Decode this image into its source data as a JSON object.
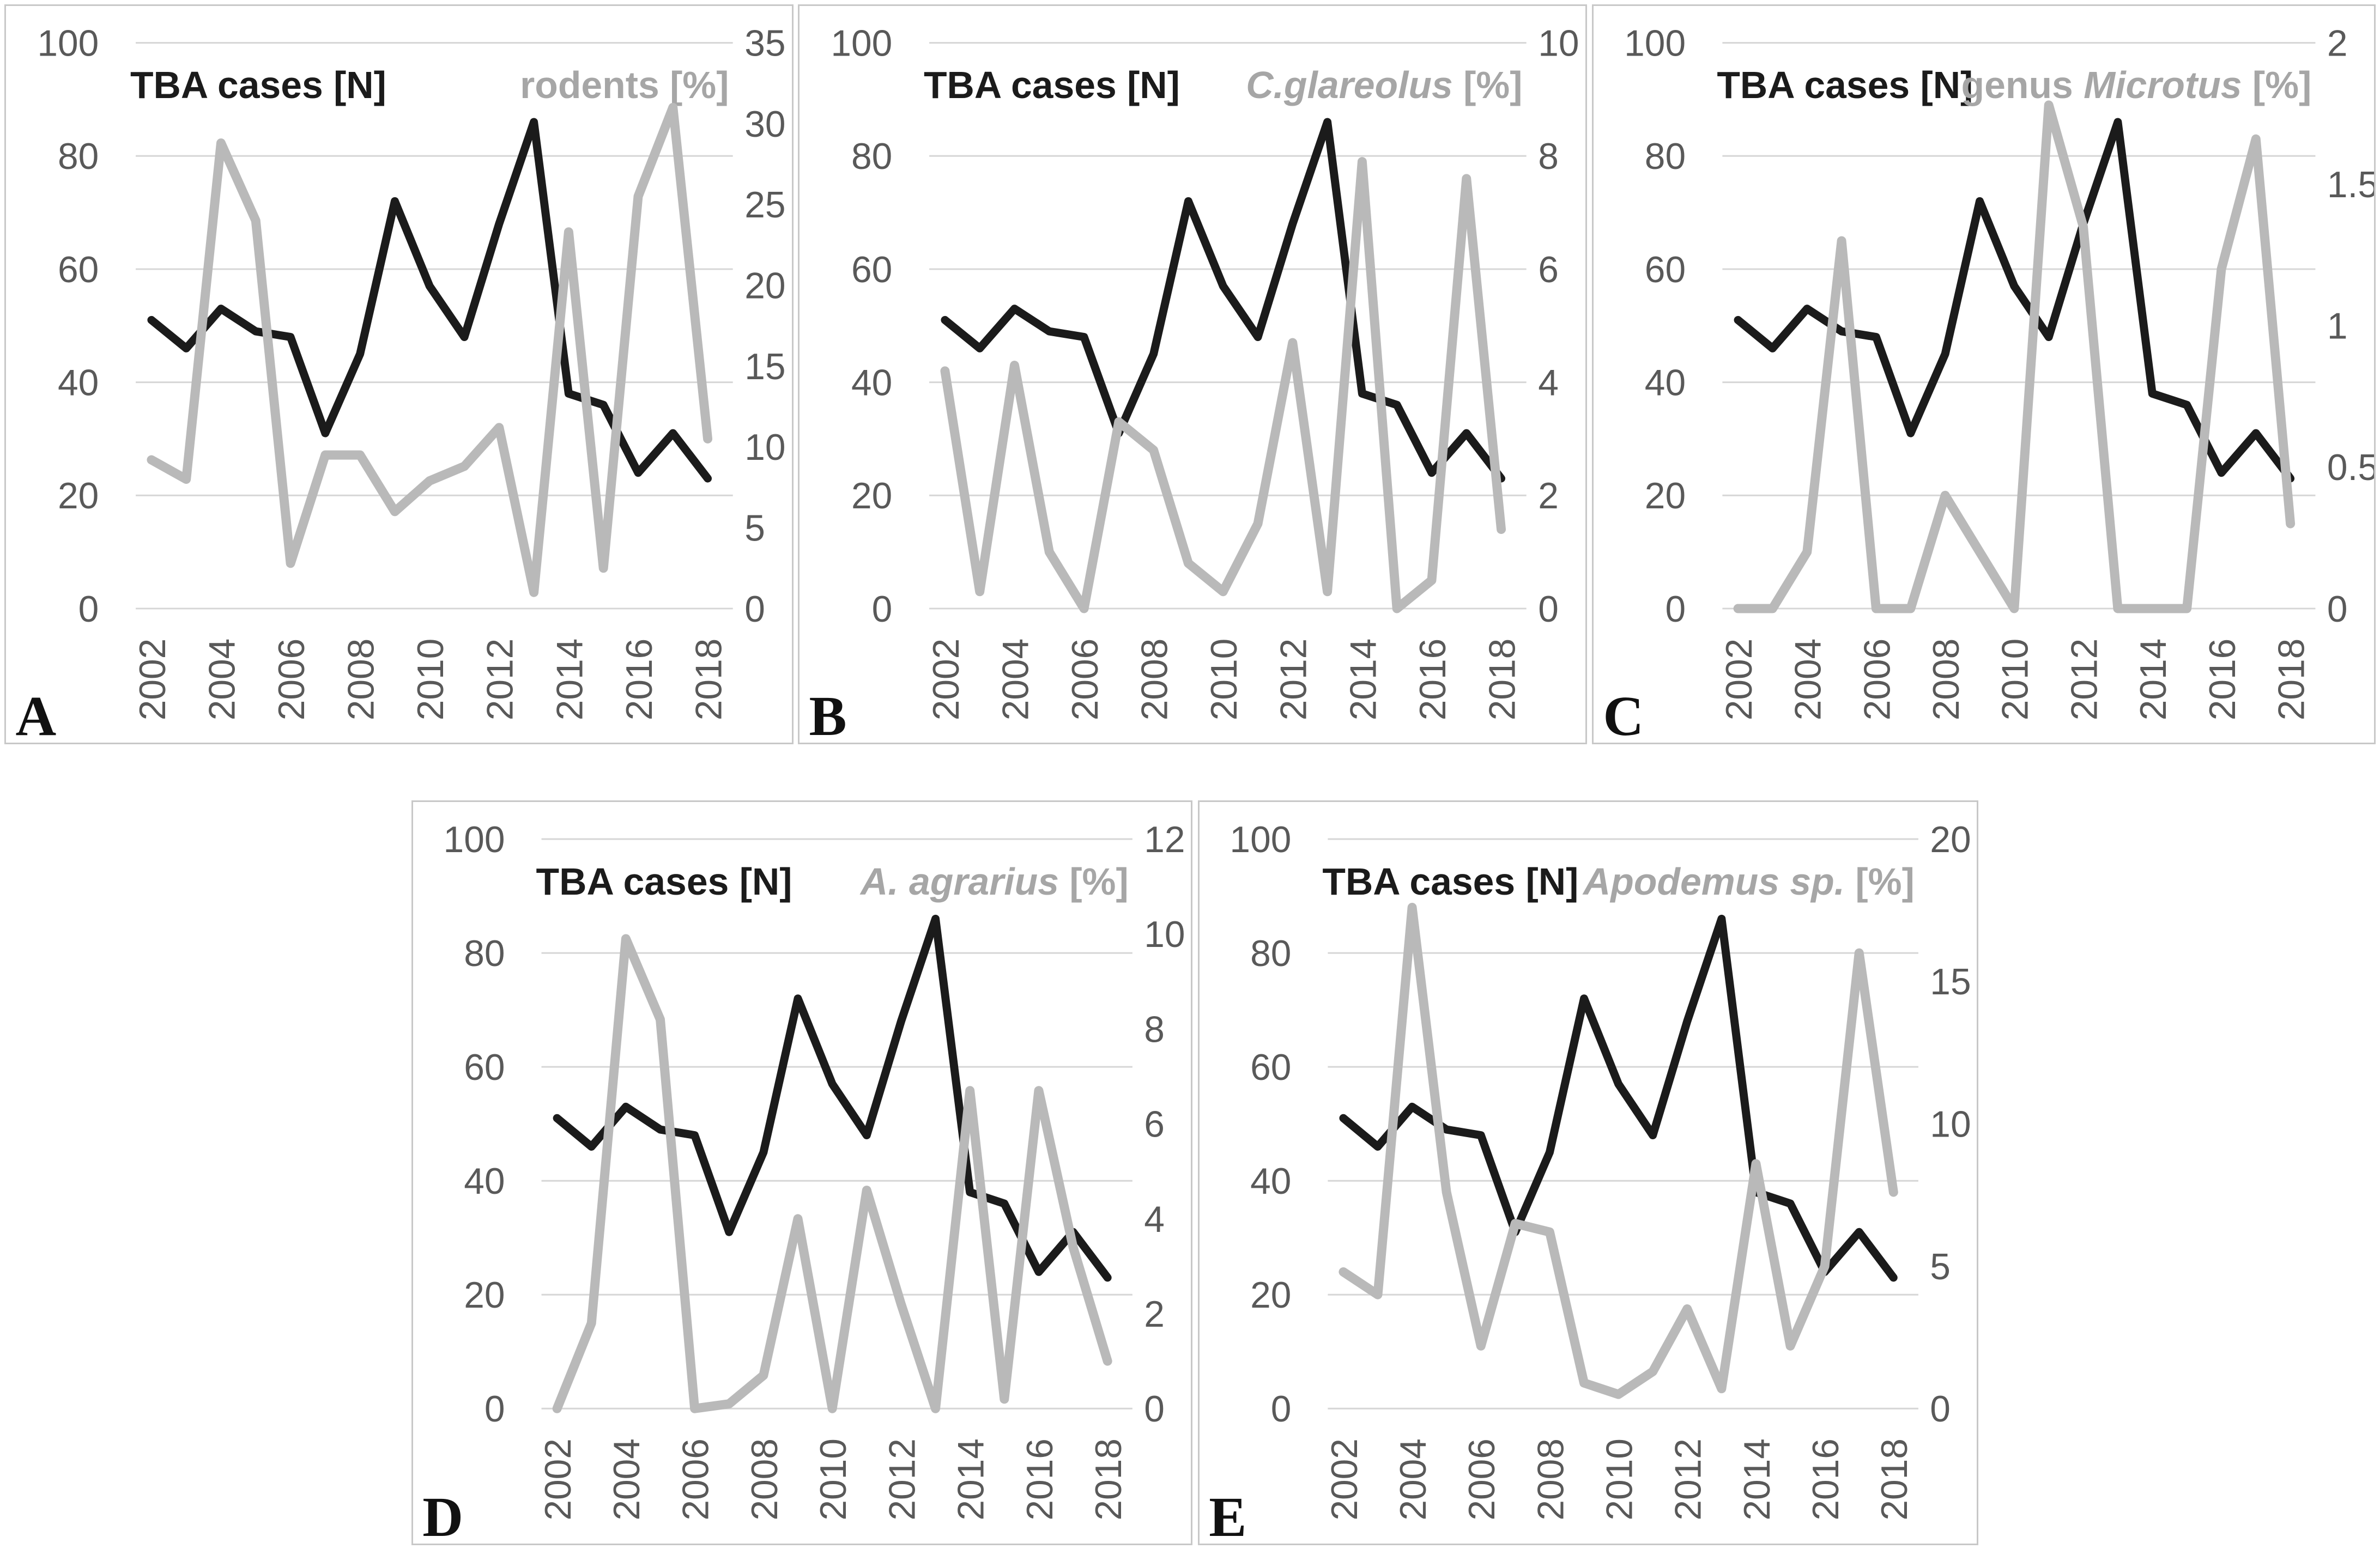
{
  "figure": {
    "description": "Five dual-axis line charts comparing tick-borne encephalitis (TBA) cases with rodent percentages, 2002-2018",
    "panel_letters": [
      "A",
      "B",
      "C",
      "D",
      "E"
    ]
  },
  "colors": {
    "cases_line": "#1b1b1b",
    "species_line": "#b9b9b9",
    "gridline": "#d6d6d6",
    "panel_border": "#c8c8c8",
    "axis_text": "#595959",
    "title_left_color": "#1b1b1b",
    "title_right_color": "#a6a6a6",
    "panel_letter_color": "#111111",
    "background": "#ffffff"
  },
  "chart_data": [
    {
      "panel_label": "A",
      "type": "line",
      "title_left": "TBA cases [N]",
      "title_right": {
        "prefix": "rodents",
        "italic": "",
        "suffix": " [%]"
      },
      "x_years": [
        2002,
        2003,
        2004,
        2005,
        2006,
        2007,
        2008,
        2009,
        2010,
        2011,
        2012,
        2013,
        2014,
        2015,
        2016,
        2017,
        2018
      ],
      "x_tick_labels": [
        "2002",
        "2004",
        "2006",
        "2008",
        "2010",
        "2012",
        "2014",
        "2016",
        "2018"
      ],
      "grid": true,
      "left_axis": {
        "min": 0,
        "max": 100,
        "ticks": [
          0,
          20,
          40,
          60,
          80,
          100
        ],
        "tick_labels": [
          "0",
          "20",
          "40",
          "60",
          "80",
          "100"
        ]
      },
      "right_axis": {
        "min": 0,
        "max": 35,
        "ticks": [
          0,
          5,
          10,
          15,
          20,
          25,
          30,
          35
        ],
        "tick_labels": [
          "0",
          "5",
          "10",
          "15",
          "20",
          "25",
          "30",
          "35"
        ]
      },
      "series": [
        {
          "name": "TBA cases [N]",
          "axis": "left",
          "color_role": "cases_line",
          "values": [
            51,
            46,
            53,
            49,
            48,
            31,
            45,
            72,
            57,
            48,
            68,
            86,
            38,
            36,
            24,
            31,
            23
          ]
        },
        {
          "name": "rodents [%]",
          "axis": "right",
          "color_role": "species_line",
          "values": [
            9.2,
            8,
            28.8,
            24,
            2.8,
            9.5,
            9.5,
            6,
            7.9,
            8.8,
            11.2,
            1,
            23.3,
            2.5,
            25.5,
            31,
            10.5
          ]
        }
      ]
    },
    {
      "panel_label": "B",
      "type": "line",
      "title_left": "TBA cases [N]",
      "title_right": {
        "prefix": "",
        "italic": "C.glareolus",
        "suffix": " [%]"
      },
      "x_years": [
        2002,
        2003,
        2004,
        2005,
        2006,
        2007,
        2008,
        2009,
        2010,
        2011,
        2012,
        2013,
        2014,
        2015,
        2016,
        2017,
        2018
      ],
      "x_tick_labels": [
        "2002",
        "2004",
        "2006",
        "2008",
        "2010",
        "2012",
        "2014",
        "2016",
        "2018"
      ],
      "grid": true,
      "left_axis": {
        "min": 0,
        "max": 100,
        "ticks": [
          0,
          20,
          40,
          60,
          80,
          100
        ],
        "tick_labels": [
          "0",
          "20",
          "40",
          "60",
          "80",
          "100"
        ]
      },
      "right_axis": {
        "min": 0,
        "max": 10,
        "ticks": [
          0,
          2,
          4,
          6,
          8,
          10
        ],
        "tick_labels": [
          "0",
          "2",
          "4",
          "6",
          "8",
          "10"
        ]
      },
      "series": [
        {
          "name": "TBA cases [N]",
          "axis": "left",
          "color_role": "cases_line",
          "values": [
            51,
            46,
            53,
            49,
            48,
            31,
            45,
            72,
            57,
            48,
            68,
            86,
            38,
            36,
            24,
            31,
            23
          ]
        },
        {
          "name": "C.glareolus [%]",
          "axis": "right",
          "color_role": "species_line",
          "values": [
            4.2,
            0.3,
            4.3,
            1,
            0,
            3.3,
            2.8,
            0.8,
            0.3,
            1.5,
            4.7,
            0.3,
            7.9,
            0,
            0.5,
            7.6,
            1.4
          ]
        }
      ]
    },
    {
      "panel_label": "C",
      "type": "line",
      "title_left": "TBA cases [N]",
      "title_right": {
        "prefix": "genus ",
        "italic": "Microtus",
        "suffix": " [%]"
      },
      "x_years": [
        2002,
        2003,
        2004,
        2005,
        2006,
        2007,
        2008,
        2009,
        2010,
        2011,
        2012,
        2013,
        2014,
        2015,
        2016,
        2017,
        2018
      ],
      "x_tick_labels": [
        "2002",
        "2004",
        "2006",
        "2008",
        "2010",
        "2012",
        "2014",
        "2016",
        "2018"
      ],
      "grid": true,
      "left_axis": {
        "min": 0,
        "max": 100,
        "ticks": [
          0,
          20,
          40,
          60,
          80,
          100
        ],
        "tick_labels": [
          "0",
          "20",
          "40",
          "60",
          "80",
          "100"
        ]
      },
      "right_axis": {
        "min": 0,
        "max": 2,
        "ticks": [
          0,
          0.5,
          1,
          1.5,
          2
        ],
        "tick_labels": [
          "0",
          "0.5",
          "1",
          "1.5",
          "2"
        ]
      },
      "series": [
        {
          "name": "TBA cases [N]",
          "axis": "left",
          "color_role": "cases_line",
          "values": [
            51,
            46,
            53,
            49,
            48,
            31,
            45,
            72,
            57,
            48,
            68,
            86,
            38,
            36,
            24,
            31,
            23
          ]
        },
        {
          "name": "genus Microtus [%]",
          "axis": "right",
          "color_role": "species_line",
          "values": [
            0,
            0,
            0.2,
            1.3,
            0,
            0,
            0.4,
            0.2,
            0,
            1.78,
            1.35,
            0,
            0,
            0,
            1.2,
            1.66,
            0.3
          ]
        }
      ]
    },
    {
      "panel_label": "D",
      "type": "line",
      "title_left": "TBA cases [N]",
      "title_right": {
        "prefix": "",
        "italic": "A. agrarius",
        "suffix": " [%]"
      },
      "x_years": [
        2002,
        2003,
        2004,
        2005,
        2006,
        2007,
        2008,
        2009,
        2010,
        2011,
        2012,
        2013,
        2014,
        2015,
        2016,
        2017,
        2018
      ],
      "x_tick_labels": [
        "2002",
        "2004",
        "2006",
        "2008",
        "2010",
        "2012",
        "2014",
        "2016",
        "2018"
      ],
      "grid": true,
      "left_axis": {
        "min": 0,
        "max": 100,
        "ticks": [
          0,
          20,
          40,
          60,
          80,
          100
        ],
        "tick_labels": [
          "0",
          "20",
          "40",
          "60",
          "80",
          "100"
        ]
      },
      "right_axis": {
        "min": 0,
        "max": 12,
        "ticks": [
          0,
          2,
          4,
          6,
          8,
          10,
          12
        ],
        "tick_labels": [
          "0",
          "2",
          "4",
          "6",
          "8",
          "10",
          "12"
        ]
      },
      "series": [
        {
          "name": "TBA cases [N]",
          "axis": "left",
          "color_role": "cases_line",
          "values": [
            51,
            46,
            53,
            49,
            48,
            31,
            45,
            72,
            57,
            48,
            68,
            86,
            38,
            36,
            24,
            31,
            23
          ]
        },
        {
          "name": "A. agrarius [%]",
          "axis": "right",
          "color_role": "species_line",
          "values": [
            0,
            1.8,
            9.9,
            8.2,
            0,
            0.1,
            0.7,
            4,
            0,
            4.6,
            2.2,
            0,
            6.7,
            0.2,
            6.7,
            3.4,
            1
          ]
        }
      ]
    },
    {
      "panel_label": "E",
      "type": "line",
      "title_left": "TBA cases [N]",
      "title_right": {
        "prefix": "",
        "italic": "Apodemus sp.",
        "suffix": " [%]"
      },
      "x_years": [
        2002,
        2003,
        2004,
        2005,
        2006,
        2007,
        2008,
        2009,
        2010,
        2011,
        2012,
        2013,
        2014,
        2015,
        2016,
        2017,
        2018
      ],
      "x_tick_labels": [
        "2002",
        "2004",
        "2006",
        "2008",
        "2010",
        "2012",
        "2014",
        "2016",
        "2018"
      ],
      "grid": true,
      "left_axis": {
        "min": 0,
        "max": 100,
        "ticks": [
          0,
          20,
          40,
          60,
          80,
          100
        ],
        "tick_labels": [
          "0",
          "20",
          "40",
          "60",
          "80",
          "100"
        ]
      },
      "right_axis": {
        "min": 0,
        "max": 20,
        "ticks": [
          0,
          5,
          10,
          15,
          20
        ],
        "tick_labels": [
          "0",
          "5",
          "10",
          "15",
          "20"
        ]
      },
      "series": [
        {
          "name": "TBA cases [N]",
          "axis": "left",
          "color_role": "cases_line",
          "values": [
            51,
            46,
            53,
            49,
            48,
            31,
            45,
            72,
            57,
            48,
            68,
            86,
            38,
            36,
            24,
            31,
            23
          ]
        },
        {
          "name": "Apodemus sp. [%]",
          "axis": "right",
          "color_role": "species_line",
          "values": [
            4.8,
            4,
            17.6,
            7.6,
            2.2,
            6.5,
            6.2,
            0.9,
            0.5,
            1.3,
            3.5,
            0.7,
            8.6,
            2.2,
            5,
            16,
            7.6
          ]
        }
      ]
    }
  ]
}
